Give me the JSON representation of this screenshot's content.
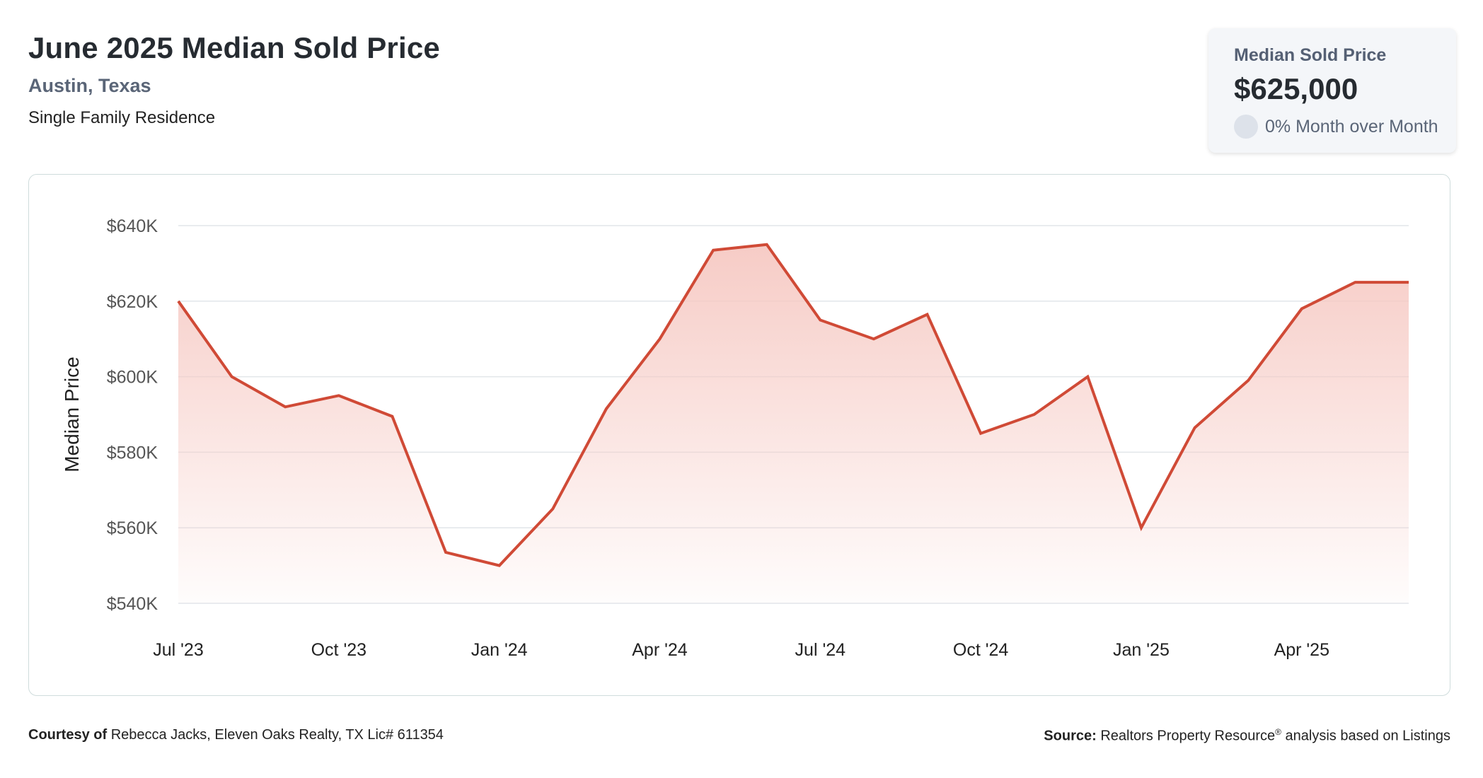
{
  "header": {
    "title": "June 2025 Median Sold Price",
    "location": "Austin, Texas",
    "property_type": "Single Family Residence"
  },
  "stat_card": {
    "label": "Median Sold Price",
    "value": "$625,000",
    "change": "0% Month over Month"
  },
  "footer": {
    "courtesy_label": "Courtesy of",
    "courtesy_text": "Rebecca Jacks, Eleven Oaks Realty, TX Lic# 611354",
    "source_label": "Source:",
    "source_name": "Realtors Property Resource",
    "source_mark": "®",
    "source_text": "analysis based on Listings"
  },
  "colors": {
    "line": "#d04a36",
    "fill_top": "#f6c9c3",
    "grid": "#e2e6ea",
    "axis_text": "#555555"
  },
  "chart_data": {
    "type": "area",
    "ylabel": "Median Price",
    "xlabel": "",
    "ylim": [
      540000,
      640000
    ],
    "y_ticks": [
      540000,
      560000,
      580000,
      600000,
      620000,
      640000
    ],
    "y_tick_labels": [
      "$540K",
      "$560K",
      "$580K",
      "$600K",
      "$620K",
      "$640K"
    ],
    "x": [
      "2023-07",
      "2023-08",
      "2023-09",
      "2023-10",
      "2023-11",
      "2023-12",
      "2024-01",
      "2024-02",
      "2024-03",
      "2024-04",
      "2024-05",
      "2024-06",
      "2024-07",
      "2024-08",
      "2024-09",
      "2024-10",
      "2024-11",
      "2024-12",
      "2025-01",
      "2025-02",
      "2025-03",
      "2025-04",
      "2025-05",
      "2025-06"
    ],
    "x_tick_labels": [
      {
        "x": "2023-07",
        "label": "Jul '23"
      },
      {
        "x": "2023-10",
        "label": "Oct '23"
      },
      {
        "x": "2024-01",
        "label": "Jan '24"
      },
      {
        "x": "2024-04",
        "label": "Apr '24"
      },
      {
        "x": "2024-07",
        "label": "Jul '24"
      },
      {
        "x": "2024-10",
        "label": "Oct '24"
      },
      {
        "x": "2025-01",
        "label": "Jan '25"
      },
      {
        "x": "2025-04",
        "label": "Apr '25"
      }
    ],
    "series": [
      {
        "values": [
          620000,
          600000,
          592000,
          595000,
          589500,
          553500,
          550000,
          565000,
          591500,
          610000,
          633500,
          635000,
          615000,
          610000,
          616500,
          585000,
          590000,
          600000,
          560000,
          586500,
          599000,
          618000,
          625000,
          625000
        ]
      }
    ],
    "grid": true,
    "legend": "none"
  }
}
